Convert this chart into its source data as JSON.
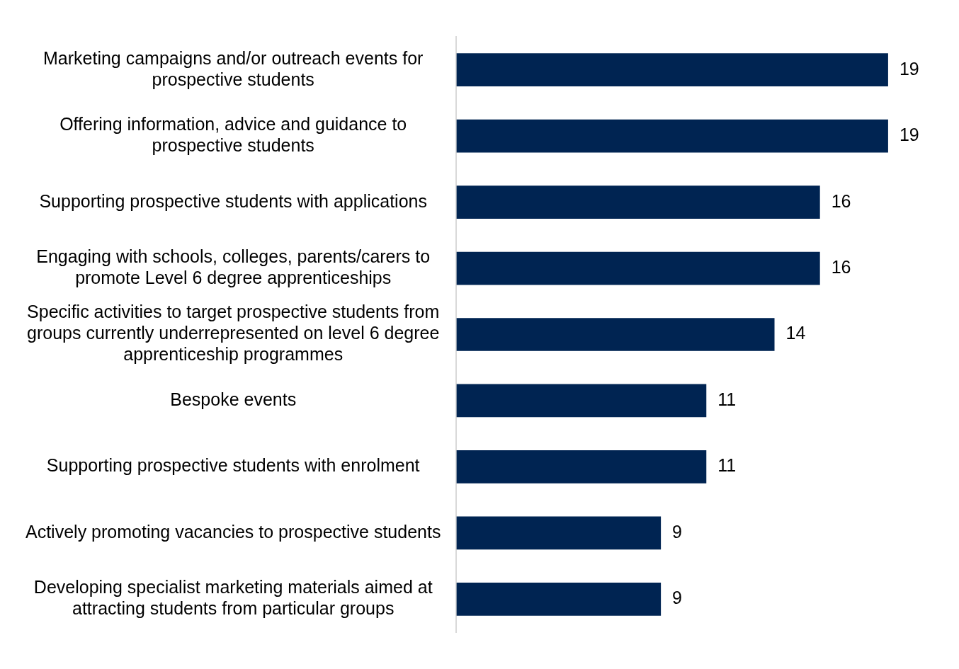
{
  "chart_data": {
    "type": "bar",
    "orientation": "horizontal",
    "categories": [
      "Marketing campaigns and/or outreach events for prospective students",
      "Offering information, advice and guidance to prospective students",
      "Supporting prospective students with applications",
      "Engaging with schools, colleges, parents/carers to promote Level 6 degree apprenticeships",
      "Specific activities to target prospective students from groups currently underrepresented on level 6 degree apprenticeship programmes",
      "Bespoke events",
      "Supporting prospective students with enrolment",
      "Actively promoting vacancies to prospective students",
      "Developing specialist marketing materials aimed at attracting students from particular groups"
    ],
    "values": [
      19,
      19,
      16,
      16,
      14,
      11,
      11,
      9,
      9
    ],
    "color": "#002452",
    "tick_labels": "y",
    "data_labels": true,
    "legend": false
  }
}
